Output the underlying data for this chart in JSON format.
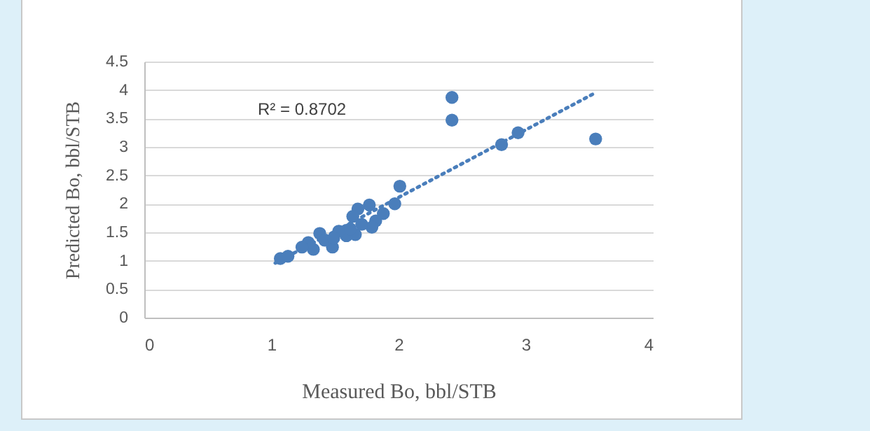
{
  "chart_data": {
    "type": "scatter",
    "xlabel": "Measured Bo, bbl/STB",
    "ylabel": "Predicted Bo, bbl/STB",
    "annotations": [
      "R² = 0.8702"
    ],
    "xlim": [
      0,
      4
    ],
    "xticks": [
      0,
      1,
      2,
      3,
      4
    ],
    "ylim": [
      0,
      4.5
    ],
    "yticks": [
      0,
      0.5,
      1,
      1.5,
      2,
      2.5,
      3,
      3.5,
      4,
      4.5
    ],
    "grid": "y",
    "series": [
      {
        "type": "line",
        "color": "#4a7ebb",
        "line_style": "dotted",
        "x": [
          1.03,
          3.53
        ],
        "values": [
          0.96,
          3.93
        ]
      },
      {
        "marker": "circle",
        "color": "#4a7ebb",
        "x": [
          2.42,
          2.42,
          2.81,
          2.94,
          3.55,
          2.01,
          1.97,
          1.88,
          1.82,
          1.77,
          1.68,
          1.64,
          1.79,
          1.66,
          1.59,
          1.48,
          1.38,
          1.33,
          1.29,
          1.07,
          1.13,
          1.24,
          1.53,
          1.62,
          1.71,
          1.42,
          1.49
        ],
        "values": [
          3.87,
          3.47,
          3.04,
          3.25,
          3.14,
          2.31,
          2.0,
          1.83,
          1.7,
          1.98,
          1.91,
          1.78,
          1.59,
          1.46,
          1.44,
          1.24,
          1.48,
          1.2,
          1.32,
          1.04,
          1.08,
          1.24,
          1.52,
          1.56,
          1.64,
          1.36,
          1.4
        ]
      }
    ]
  }
}
